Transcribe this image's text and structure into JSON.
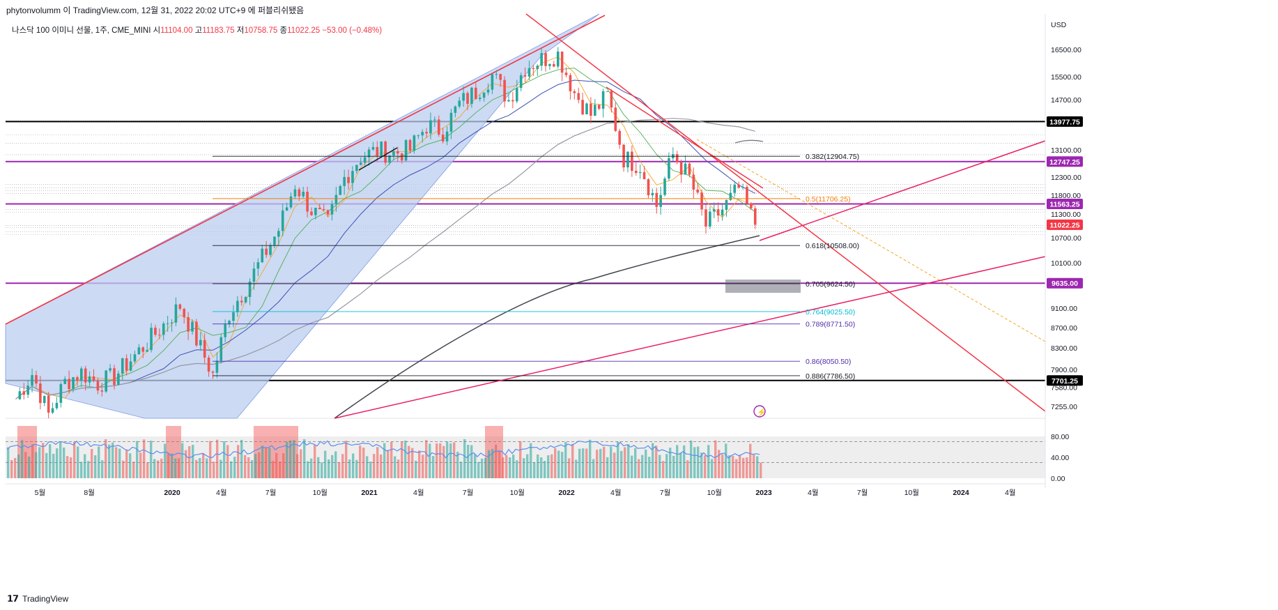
{
  "header": {
    "published": "phytonvolumm 이 TradingView.com, 12월 31, 2022 20:02 UTC+9 에 퍼블리쉬됐음",
    "symbol": "나스닥 100 이미니 선물, 1주, CME_MINI",
    "ohlc": {
      "o_label": "시",
      "o": "11104.00",
      "h_label": "고",
      "h": "11183.75",
      "l_label": "저",
      "l": "10758.75",
      "c_label": "종",
      "c": "11022.25",
      "change": "−53.00 (−0.48%)"
    }
  },
  "footer": {
    "brand": "TradingView",
    "logo": "tv-logo-icon"
  },
  "chart_data": {
    "type": "candlestick",
    "currency": "USD",
    "price_ticks": [
      "16500.00",
      "15500.00",
      "14700.00",
      "13100.00",
      "12300.00",
      "11800.00",
      "11300.00",
      "10700.00",
      "10100.00",
      "9100.00",
      "8700.00",
      "8300.00",
      "7900.00",
      "7580.00",
      "7255.00"
    ],
    "price_tick_values": [
      16500,
      15500,
      14700,
      13100,
      12300,
      11800,
      11300,
      10700,
      10100,
      9100,
      8700,
      8300,
      7900,
      7580,
      7255
    ],
    "price_badges": [
      {
        "label": "13977.75",
        "value": 13977.75,
        "color": "#000000"
      },
      {
        "label": "12747.25",
        "value": 12747.25,
        "color": "#9c27b0"
      },
      {
        "label": "11563.25",
        "value": 11563.25,
        "color": "#9c27b0"
      },
      {
        "label": "11022.25",
        "value": 11022.25,
        "color": "#f23645"
      },
      {
        "label": "9635.00",
        "value": 9635.0,
        "color": "#9c27b0"
      },
      {
        "label": "7701.25",
        "value": 7701.25,
        "color": "#000000"
      }
    ],
    "fib_levels": [
      {
        "label": "0.382(12904.75)",
        "value": 12904.75,
        "color": "#131722"
      },
      {
        "label": "0.5(11706.25)",
        "value": 11706.25,
        "color": "#f57c00"
      },
      {
        "label": "0.618(10508.00)",
        "value": 10508.0,
        "color": "#131722"
      },
      {
        "label": "0.705(9624.50)",
        "value": 9624.5,
        "color": "#131722"
      },
      {
        "label": "0.764(9025.50)",
        "value": 9025.5,
        "color": "#00bcd4"
      },
      {
        "label": "0.789(8771.50)",
        "value": 8771.5,
        "color": "#512da8"
      },
      {
        "label": "0.86(8050.50)",
        "value": 8050.5,
        "color": "#512da8"
      },
      {
        "label": "0.886(7786.50)",
        "value": 7786.5,
        "color": "#131722"
      }
    ],
    "x_ticks": [
      "5월",
      "8월",
      "2020",
      "4월",
      "7월",
      "10월",
      "2021",
      "4월",
      "7월",
      "10월",
      "2022",
      "4월",
      "7월",
      "10월",
      "2023",
      "4월",
      "7월",
      "10월",
      "2024",
      "4월"
    ],
    "x_tick_times": [
      2019.33,
      2019.58,
      2020.0,
      2020.25,
      2020.5,
      2020.75,
      2021.0,
      2021.25,
      2021.5,
      2021.75,
      2022.0,
      2022.25,
      2022.5,
      2022.75,
      2023.0,
      2023.25,
      2023.5,
      2023.75,
      2024.0,
      2024.25
    ],
    "x_range": [
      2019.17,
      2024.45
    ],
    "monthly_closes": [
      [
        "2019-03",
        7380
      ],
      [
        "2019-04",
        7820
      ],
      [
        "2019-05",
        7120
      ],
      [
        "2019-06",
        7670
      ],
      [
        "2019-07",
        7850
      ],
      [
        "2019-08",
        7650
      ],
      [
        "2019-09",
        7770
      ],
      [
        "2019-10",
        8080
      ],
      [
        "2019-11",
        8400
      ],
      [
        "2019-12",
        8760
      ],
      [
        "2020-01",
        9150
      ],
      [
        "2020-02",
        8460
      ],
      [
        "2020-03",
        7800
      ],
      [
        "2020-04",
        9000
      ],
      [
        "2020-05",
        9550
      ],
      [
        "2020-06",
        10200
      ],
      [
        "2020-07",
        10900
      ],
      [
        "2020-08",
        12100
      ],
      [
        "2020-09",
        11400
      ],
      [
        "2020-10",
        11050
      ],
      [
        "2020-11",
        12270
      ],
      [
        "2020-12",
        12900
      ],
      [
        "2021-01",
        13070
      ],
      [
        "2021-02",
        13000
      ],
      [
        "2021-03",
        13100
      ],
      [
        "2021-04",
        13860
      ],
      [
        "2021-05",
        13680
      ],
      [
        "2021-06",
        14550
      ],
      [
        "2021-07",
        14970
      ],
      [
        "2021-08",
        15560
      ],
      [
        "2021-09",
        14690
      ],
      [
        "2021-10",
        15850
      ],
      [
        "2021-11",
        16130
      ],
      [
        "2021-12",
        16320
      ],
      [
        "2022-01",
        14940
      ],
      [
        "2022-02",
        14200
      ],
      [
        "2022-03",
        14830
      ],
      [
        "2022-04",
        12850
      ],
      [
        "2022-05",
        12640
      ],
      [
        "2022-06",
        11520
      ],
      [
        "2022-07",
        12950
      ],
      [
        "2022-08",
        12270
      ],
      [
        "2022-09",
        11000
      ],
      [
        "2022-10",
        11410
      ],
      [
        "2022-11",
        11980
      ],
      [
        "2022-12",
        11022.25
      ]
    ],
    "oscillator_ticks": [
      "80.00",
      "40.00",
      "0.00"
    ],
    "oscillator_tick_values": [
      80,
      40,
      0
    ],
    "oscillator_bands": [
      30,
      70
    ]
  }
}
